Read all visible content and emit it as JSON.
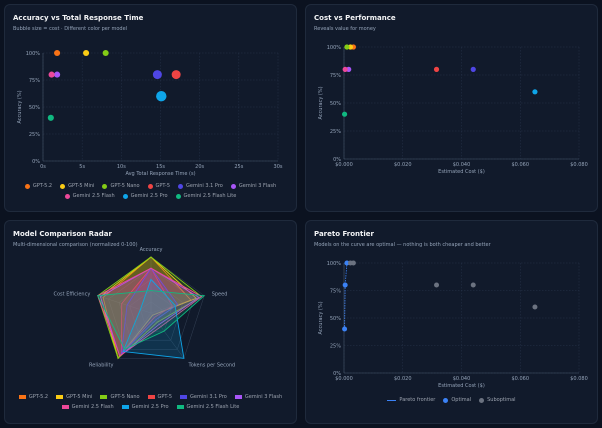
{
  "models": [
    {
      "name": "GPT-5.2",
      "color": "#f97316"
    },
    {
      "name": "GPT-5 Mini",
      "color": "#facc15"
    },
    {
      "name": "GPT-5 Nano",
      "color": "#84cc16"
    },
    {
      "name": "GPT-5",
      "color": "#ef4444"
    },
    {
      "name": "Gemini 3.1 Pro",
      "color": "#4f46e5"
    },
    {
      "name": "Gemini 3 Flash",
      "color": "#a855f7"
    },
    {
      "name": "Gemini 2.5 Flash",
      "color": "#ec4899"
    },
    {
      "name": "Gemini 2.5 Pro",
      "color": "#0ea5e9"
    },
    {
      "name": "Gemini 2.5 Flash Lite",
      "color": "#10b981"
    }
  ],
  "panels": {
    "accuracy_vs_time": {
      "title": "Accuracy vs Total Response Time",
      "subtitle": "Bubble size = cost · Different color per model"
    },
    "cost_vs_perf": {
      "title": "Cost vs Performance",
      "subtitle": "Reveals value for money"
    },
    "radar": {
      "title": "Model Comparison Radar",
      "subtitle": "Multi-dimensional comparison (normalized 0-100)"
    },
    "pareto": {
      "title": "Pareto Frontier",
      "subtitle": "Models on the curve are optimal — nothing is both cheaper and better"
    }
  },
  "pareto_legend": {
    "frontier": "Pareto frontier",
    "optimal": "Optimal",
    "suboptimal": "Suboptimal"
  },
  "chart_data": [
    {
      "type": "scatter",
      "title": "Accuracy vs Total Response Time",
      "xlabel": "Avg Total Response Time (s)",
      "ylabel": "Accuracy (%)",
      "xlim": [
        0,
        30
      ],
      "ylim": [
        0,
        100
      ],
      "xticks": [
        "0s",
        "5s",
        "10s",
        "15s",
        "20s",
        "25s",
        "30s"
      ],
      "yticks": [
        "0%",
        "25%",
        "50%",
        "75%",
        "100%"
      ],
      "points": [
        {
          "model": "GPT-5.2",
          "x": 1.8,
          "y": 100,
          "size": 4
        },
        {
          "model": "GPT-5 Mini",
          "x": 5.5,
          "y": 100,
          "size": 4
        },
        {
          "model": "GPT-5 Nano",
          "x": 8,
          "y": 100,
          "size": 4
        },
        {
          "model": "GPT-5",
          "x": 17,
          "y": 80,
          "size": 6
        },
        {
          "model": "Gemini 3.1 Pro",
          "x": 14.6,
          "y": 80,
          "size": 6
        },
        {
          "model": "Gemini 3 Flash",
          "x": 1.8,
          "y": 80,
          "size": 4
        },
        {
          "model": "Gemini 2.5 Flash",
          "x": 1.1,
          "y": 80,
          "size": 4
        },
        {
          "model": "Gemini 2.5 Pro",
          "x": 15.1,
          "y": 60,
          "size": 7
        },
        {
          "model": "Gemini 2.5 Flash Lite",
          "x": 1,
          "y": 40,
          "size": 4
        }
      ]
    },
    {
      "type": "scatter",
      "title": "Cost vs Performance",
      "xlabel": "Estimated Cost ($)",
      "ylabel": "Accuracy (%)",
      "xlim": [
        0,
        0.08
      ],
      "ylim": [
        0,
        100
      ],
      "xticks": [
        "$0.000",
        "$0.020",
        "$0.040",
        "$0.060",
        "$0.080"
      ],
      "yticks": [
        "0%",
        "25%",
        "50%",
        "75%",
        "100%"
      ],
      "points": [
        {
          "model": "GPT-5.2",
          "x": 0.0032,
          "y": 100
        },
        {
          "model": "GPT-5 Mini",
          "x": 0.0022,
          "y": 100
        },
        {
          "model": "GPT-5 Nano",
          "x": 0.001,
          "y": 100
        },
        {
          "model": "GPT-5",
          "x": 0.0315,
          "y": 80
        },
        {
          "model": "Gemini 3.1 Pro",
          "x": 0.044,
          "y": 80
        },
        {
          "model": "Gemini 3 Flash",
          "x": 0.0016,
          "y": 80
        },
        {
          "model": "Gemini 2.5 Flash",
          "x": 0.0004,
          "y": 80
        },
        {
          "model": "Gemini 2.5 Pro",
          "x": 0.065,
          "y": 60
        },
        {
          "model": "Gemini 2.5 Flash Lite",
          "x": 0.0002,
          "y": 40
        }
      ]
    },
    {
      "type": "radar",
      "title": "Model Comparison Radar",
      "axes": [
        "Accuracy",
        "Speed",
        "Tokens per Second",
        "Reliability",
        "Cost Efficiency"
      ],
      "max": 100,
      "series": [
        {
          "model": "GPT-5.2",
          "values": [
            100,
            75,
            5,
            100,
            90
          ]
        },
        {
          "model": "GPT-5 Mini",
          "values": [
            100,
            85,
            5,
            100,
            95
          ]
        },
        {
          "model": "GPT-5 Nano",
          "values": [
            100,
            95,
            20,
            100,
            100
          ]
        },
        {
          "model": "GPT-5",
          "values": [
            80,
            40,
            10,
            90,
            55
          ]
        },
        {
          "model": "Gemini 3.1 Pro",
          "values": [
            80,
            50,
            15,
            90,
            45
          ]
        },
        {
          "model": "Gemini 3 Flash",
          "values": [
            80,
            90,
            25,
            95,
            95
          ]
        },
        {
          "model": "Gemini 2.5 Flash",
          "values": [
            80,
            95,
            30,
            95,
            100
          ]
        },
        {
          "model": "Gemini 2.5 Pro",
          "values": [
            60,
            45,
            100,
            85,
            20
          ]
        },
        {
          "model": "Gemini 2.5 Flash Lite",
          "values": [
            40,
            100,
            40,
            80,
            100
          ]
        }
      ]
    },
    {
      "type": "scatter",
      "title": "Pareto Frontier",
      "xlabel": "Estimated Cost ($)",
      "ylabel": "Accuracy (%)",
      "xlim": [
        0,
        0.08
      ],
      "ylim": [
        0,
        100
      ],
      "xticks": [
        "$0.000",
        "$0.020",
        "$0.040",
        "$0.060",
        "$0.080"
      ],
      "yticks": [
        "0%",
        "25%",
        "50%",
        "75%",
        "100%"
      ],
      "points": [
        {
          "x": 0.0002,
          "y": 40,
          "status": "optimal"
        },
        {
          "x": 0.0004,
          "y": 80,
          "status": "optimal"
        },
        {
          "x": 0.001,
          "y": 100,
          "status": "optimal"
        },
        {
          "x": 0.0022,
          "y": 100,
          "status": "suboptimal"
        },
        {
          "x": 0.0032,
          "y": 100,
          "status": "suboptimal"
        },
        {
          "x": 0.0315,
          "y": 80,
          "status": "suboptimal"
        },
        {
          "x": 0.044,
          "y": 80,
          "status": "suboptimal"
        },
        {
          "x": 0.065,
          "y": 60,
          "status": "suboptimal"
        }
      ]
    }
  ]
}
